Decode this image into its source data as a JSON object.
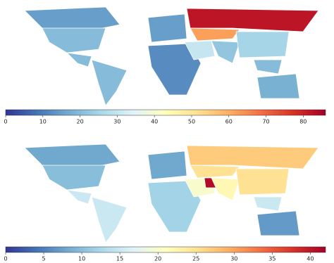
{
  "maps": [
    {
      "regions": [
        15,
        20,
        20,
        20,
        15,
        12,
        82,
        62,
        30,
        22,
        25,
        20,
        18
      ],
      "clim": [
        0,
        86
      ],
      "ticks": [
        0,
        10,
        20,
        30,
        40,
        50,
        60,
        70,
        80
      ]
    },
    {
      "regions": [
        8,
        10,
        15,
        15,
        8,
        12,
        27,
        25,
        20,
        41,
        22,
        25,
        15,
        7
      ],
      "clim": [
        0,
        42
      ],
      "ticks": [
        0,
        5,
        10,
        15,
        20,
        25,
        30,
        35,
        40
      ]
    }
  ]
}
